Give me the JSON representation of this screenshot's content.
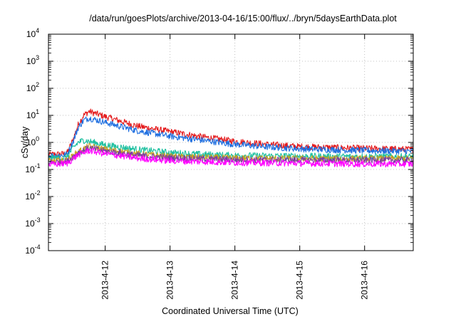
{
  "chart_data": {
    "type": "line",
    "title": "/data/run/goesPlots/archive/2013-04-16/15:00/flux/../bryn/5daysEarthData.plot",
    "xlabel": "Coordinated Universal Time (UTC)",
    "ylabel": "cSv/day",
    "y_scale": "log",
    "ylim": [
      0.0001,
      10000
    ],
    "xlim": [
      "2013-04-11T03:00",
      "2013-04-16T18:00"
    ],
    "y_ticks": [
      {
        "base": "10",
        "exp": "-4",
        "value": 0.0001
      },
      {
        "base": "10",
        "exp": "-3",
        "value": 0.001
      },
      {
        "base": "10",
        "exp": "-2",
        "value": 0.01
      },
      {
        "base": "10",
        "exp": "-1",
        "value": 0.1
      },
      {
        "base": "10",
        "exp": "0",
        "value": 1
      },
      {
        "base": "10",
        "exp": "1",
        "value": 10
      },
      {
        "base": "10",
        "exp": "2",
        "value": 100
      },
      {
        "base": "10",
        "exp": "3",
        "value": 1000
      },
      {
        "base": "10",
        "exp": "4",
        "value": 10000
      }
    ],
    "x_ticks": [
      {
        "label": "2013-4-12",
        "value": "2013-04-12T00:00"
      },
      {
        "label": "2013-4-13",
        "value": "2013-04-13T00:00"
      },
      {
        "label": "2013-4-14",
        "value": "2013-04-14T00:00"
      },
      {
        "label": "2013-4-15",
        "value": "2013-04-15T00:00"
      },
      {
        "label": "2013-4-16",
        "value": "2013-04-16T00:00"
      }
    ],
    "grid": true,
    "noise": 0.12,
    "series": [
      {
        "color": "#e41a1c",
        "x": [
          "2013-04-11T03:00",
          "2013-04-11T09:00",
          "2013-04-11T10:00",
          "2013-04-11T12:00",
          "2013-04-11T14:00",
          "2013-04-11T16:00",
          "2013-04-11T18:00",
          "2013-04-12T00:00",
          "2013-04-12T06:00",
          "2013-04-12T12:00",
          "2013-04-13T00:00",
          "2013-04-13T12:00",
          "2013-04-14T00:00",
          "2013-04-14T12:00",
          "2013-04-15T00:00",
          "2013-04-16T00:00",
          "2013-04-16T18:00"
        ],
        "y": [
          0.35,
          0.38,
          0.42,
          1.2,
          4.5,
          10,
          14,
          9,
          6,
          4,
          2.5,
          1.6,
          1.1,
          0.85,
          0.7,
          0.6,
          0.55
        ]
      },
      {
        "color": "#1f6fe0",
        "x": [
          "2013-04-11T03:00",
          "2013-04-11T09:00",
          "2013-04-11T10:00",
          "2013-04-11T12:00",
          "2013-04-11T14:00",
          "2013-04-11T16:00",
          "2013-04-11T18:00",
          "2013-04-12T00:00",
          "2013-04-12T06:00",
          "2013-04-12T12:00",
          "2013-04-13T00:00",
          "2013-04-13T12:00",
          "2013-04-14T00:00",
          "2013-04-14T12:00",
          "2013-04-15T00:00",
          "2013-04-16T00:00",
          "2013-04-16T18:00"
        ],
        "y": [
          0.32,
          0.34,
          0.38,
          1.0,
          3.5,
          6.5,
          8,
          5.5,
          3.8,
          2.7,
          1.7,
          1.2,
          0.85,
          0.68,
          0.58,
          0.5,
          0.47
        ]
      },
      {
        "color": "#1ec0a0",
        "x": [
          "2013-04-11T03:00",
          "2013-04-11T09:00",
          "2013-04-11T10:00",
          "2013-04-11T12:00",
          "2013-04-11T14:00",
          "2013-04-11T16:00",
          "2013-04-11T18:00",
          "2013-04-12T00:00",
          "2013-04-12T12:00",
          "2013-04-13T00:00",
          "2013-04-13T12:00",
          "2013-04-14T00:00",
          "2013-04-15T00:00",
          "2013-04-16T00:00",
          "2013-04-16T18:00"
        ],
        "y": [
          0.26,
          0.27,
          0.3,
          0.6,
          1.0,
          1.2,
          1.1,
          0.8,
          0.55,
          0.42,
          0.36,
          0.33,
          0.31,
          0.3,
          0.3
        ]
      },
      {
        "color": "#c8a020",
        "x": [
          "2013-04-11T03:00",
          "2013-04-11T10:00",
          "2013-04-11T14:00",
          "2013-04-11T18:00",
          "2013-04-12T00:00",
          "2013-04-12T12:00",
          "2013-04-13T00:00",
          "2013-04-14T00:00",
          "2013-04-15T00:00",
          "2013-04-16T00:00",
          "2013-04-16T18:00"
        ],
        "y": [
          0.2,
          0.22,
          0.45,
          0.72,
          0.55,
          0.38,
          0.3,
          0.26,
          0.25,
          0.25,
          0.25
        ]
      },
      {
        "color": "#7b3fa0",
        "x": [
          "2013-04-11T03:00",
          "2013-04-11T10:00",
          "2013-04-11T14:00",
          "2013-04-11T18:00",
          "2013-04-12T00:00",
          "2013-04-12T12:00",
          "2013-04-13T00:00",
          "2013-04-14T00:00",
          "2013-04-15T00:00",
          "2013-04-16T00:00",
          "2013-04-16T18:00"
        ],
        "y": [
          0.18,
          0.2,
          0.42,
          0.62,
          0.48,
          0.33,
          0.27,
          0.23,
          0.22,
          0.22,
          0.22
        ]
      },
      {
        "color": "#ff00ff",
        "x": [
          "2013-04-11T03:00",
          "2013-04-11T10:00",
          "2013-04-11T14:00",
          "2013-04-11T18:00",
          "2013-04-12T00:00",
          "2013-04-12T12:00",
          "2013-04-13T00:00",
          "2013-04-14T00:00",
          "2013-04-15T00:00",
          "2013-04-16T00:00",
          "2013-04-16T18:00"
        ],
        "y": [
          0.15,
          0.17,
          0.35,
          0.5,
          0.38,
          0.26,
          0.21,
          0.18,
          0.17,
          0.16,
          0.16
        ]
      }
    ]
  }
}
